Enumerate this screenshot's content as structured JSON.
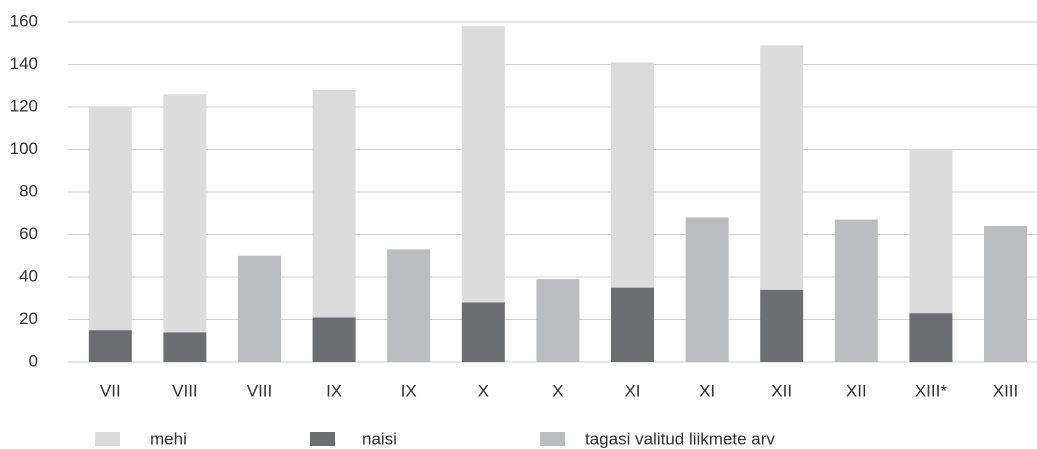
{
  "chart_data": {
    "type": "stacked_bar",
    "categories": [
      "VII",
      "VIII",
      "VIII",
      "IX",
      "IX",
      "X",
      "X",
      "XI",
      "XI",
      "XII",
      "XII",
      "XIII*",
      "XIII"
    ],
    "series": [
      {
        "name": "mehi",
        "color": "#dcdcdd",
        "values": [
          105,
          112,
          null,
          107,
          null,
          130,
          null,
          106,
          null,
          115,
          null,
          77,
          null
        ]
      },
      {
        "name": "naisi",
        "color": "#6d6e71",
        "values": [
          15,
          14,
          null,
          21,
          null,
          28,
          null,
          35,
          null,
          34,
          null,
          23,
          null
        ]
      },
      {
        "name": "tagasi valitud liikmete arv",
        "color": "#bcbdc0",
        "values": [
          null,
          null,
          50,
          null,
          53,
          null,
          39,
          null,
          68,
          null,
          67,
          null,
          64
        ]
      }
    ],
    "stack_order": [
      "naisi",
      "mehi"
    ],
    "ylim": [
      0,
      160
    ],
    "yticks": [
      0,
      20,
      40,
      60,
      80,
      100,
      120,
      140,
      160
    ],
    "grid": true,
    "legend": "bottom"
  }
}
